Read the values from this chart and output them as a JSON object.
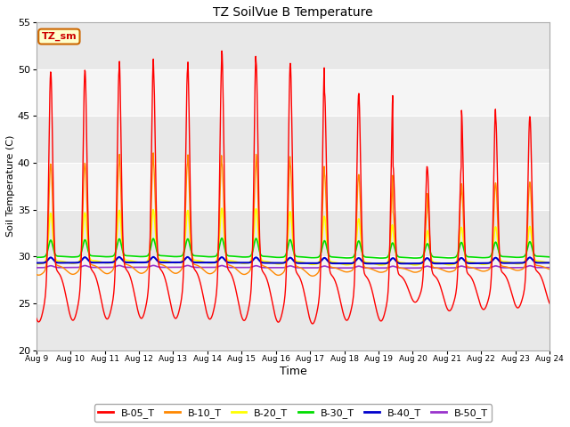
{
  "title": "TZ SoilVue B Temperature",
  "xlabel": "Time",
  "ylabel": "Soil Temperature (C)",
  "ylim": [
    20,
    55
  ],
  "yticks": [
    20,
    25,
    30,
    35,
    40,
    45,
    50,
    55
  ],
  "xtick_labels": [
    "Aug 9",
    "Aug 10",
    "Aug 11",
    "Aug 12",
    "Aug 13",
    "Aug 14",
    "Aug 15",
    "Aug 16",
    "Aug 17",
    "Aug 18",
    "Aug 19",
    "Aug 20",
    "Aug 21",
    "Aug 22",
    "Aug 23",
    "Aug 24"
  ],
  "series": {
    "B-05_T": {
      "color": "#ff0000",
      "linewidth": 1.0
    },
    "B-10_T": {
      "color": "#ff8800",
      "linewidth": 1.0
    },
    "B-20_T": {
      "color": "#ffff00",
      "linewidth": 1.2
    },
    "B-30_T": {
      "color": "#00dd00",
      "linewidth": 1.2
    },
    "B-40_T": {
      "color": "#0000cc",
      "linewidth": 1.5
    },
    "B-50_T": {
      "color": "#9933cc",
      "linewidth": 1.2
    }
  },
  "annotation": {
    "text": "TZ_sm",
    "fontsize": 8,
    "color": "#cc0000",
    "bg": "#ffffcc",
    "border": "#cc6600"
  },
  "bg_bands": [
    {
      "ymin": 20,
      "ymax": 25,
      "color": "#e8e8e8"
    },
    {
      "ymin": 25,
      "ymax": 30,
      "color": "#f5f5f5"
    },
    {
      "ymin": 30,
      "ymax": 35,
      "color": "#e8e8e8"
    },
    {
      "ymin": 35,
      "ymax": 40,
      "color": "#f5f5f5"
    },
    {
      "ymin": 40,
      "ymax": 45,
      "color": "#e8e8e8"
    },
    {
      "ymin": 45,
      "ymax": 50,
      "color": "#f5f5f5"
    },
    {
      "ymin": 50,
      "ymax": 55,
      "color": "#e8e8e8"
    }
  ]
}
